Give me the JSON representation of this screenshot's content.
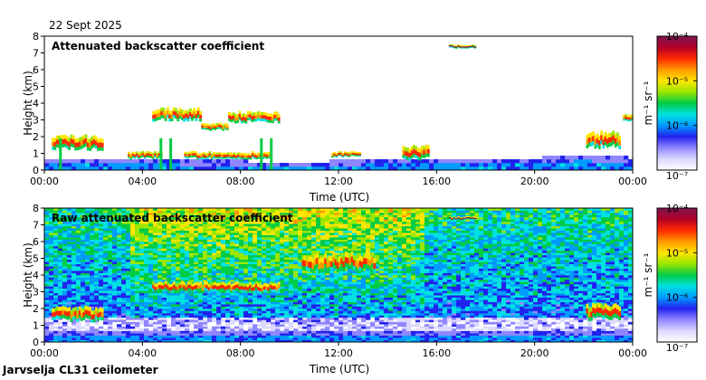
{
  "date": "22 Sept 2025",
  "footer": "Jarvselja CL31 ceilometer",
  "colors": {
    "ramp": [
      "#ffffff",
      "#dcd8ff",
      "#8f86ff",
      "#2222ee",
      "#009bff",
      "#00e1e1",
      "#00cc44",
      "#9ae600",
      "#ffe600",
      "#ff9900",
      "#ff2a00",
      "#b40028",
      "#7a1550"
    ],
    "background": "#ffffff"
  },
  "chart_data": [
    {
      "type": "heatmap",
      "title": "Attenuated backscatter coefficient",
      "xlabel": "Time (UTC)",
      "ylabel": "Height (km)",
      "xticks": [
        "00:00",
        "04:00",
        "08:00",
        "12:00",
        "16:00",
        "20:00",
        "00:00"
      ],
      "xlim_hours": [
        0,
        24
      ],
      "ylim_km": [
        0,
        8
      ],
      "yticks": [
        "0",
        "1",
        "2",
        "3",
        "4",
        "5",
        "6",
        "7",
        "8"
      ],
      "colorbar": {
        "label": "m⁻¹ sr⁻¹",
        "scale": "log",
        "range": [
          1e-07,
          0.0001
        ],
        "ticks": [
          "10⁻⁷",
          "10⁻⁶",
          "10⁻⁵",
          "10⁻⁴"
        ]
      },
      "boundary_layer_km": [
        [
          0,
          0.45
        ],
        [
          2,
          0.4
        ],
        [
          4,
          0.4
        ],
        [
          6,
          0.3
        ],
        [
          8,
          0.3
        ],
        [
          10,
          0.25
        ],
        [
          12,
          0.3
        ],
        [
          14,
          0.35
        ],
        [
          16,
          0.5
        ],
        [
          18,
          0.45
        ],
        [
          20,
          0.5
        ],
        [
          22,
          0.55
        ],
        [
          24,
          0.5
        ]
      ],
      "cloud_layers": [
        {
          "start_h": 0.3,
          "end_h": 2.4,
          "base_km": 1.3,
          "top_km": 2.1,
          "peak": "red"
        },
        {
          "start_h": 3.4,
          "end_h": 4.8,
          "base_km": 0.7,
          "top_km": 1.1,
          "peak": "red"
        },
        {
          "start_h": 4.4,
          "end_h": 6.4,
          "base_km": 3.0,
          "top_km": 3.7,
          "peak": "red"
        },
        {
          "start_h": 6.4,
          "end_h": 7.5,
          "base_km": 2.4,
          "top_km": 2.8,
          "peak": "red"
        },
        {
          "start_h": 7.5,
          "end_h": 9.6,
          "base_km": 2.9,
          "top_km": 3.5,
          "peak": "red"
        },
        {
          "start_h": 5.7,
          "end_h": 9.2,
          "base_km": 0.7,
          "top_km": 1.1,
          "peak": "red"
        },
        {
          "start_h": 11.7,
          "end_h": 12.9,
          "base_km": 0.8,
          "top_km": 1.1,
          "peak": "red"
        },
        {
          "start_h": 14.6,
          "end_h": 15.7,
          "base_km": 0.7,
          "top_km": 1.5,
          "peak": "red"
        },
        {
          "start_h": 16.5,
          "end_h": 17.6,
          "base_km": 7.3,
          "top_km": 7.5,
          "peak": "maroon"
        },
        {
          "start_h": 22.1,
          "end_h": 23.5,
          "base_km": 1.4,
          "top_km": 2.3,
          "peak": "red"
        },
        {
          "start_h": 23.6,
          "end_h": 24.0,
          "base_km": 2.9,
          "top_km": 3.3,
          "peak": "red"
        }
      ],
      "precipitation_streaks_h": [
        0.6,
        4.7,
        5.1,
        8.8,
        9.2
      ]
    },
    {
      "type": "heatmap",
      "title": "Raw attenuated backscatter coefficient",
      "xlabel": "Time (UTC)",
      "ylabel": "Height (km)",
      "xticks": [
        "00:00",
        "04:00",
        "08:00",
        "12:00",
        "16:00",
        "20:00",
        "00:00"
      ],
      "xlim_hours": [
        0,
        24
      ],
      "ylim_km": [
        0,
        8
      ],
      "yticks": [
        "0",
        "1",
        "2",
        "3",
        "4",
        "5",
        "6",
        "7",
        "8"
      ],
      "colorbar": {
        "label": "m⁻¹ sr⁻¹",
        "scale": "log",
        "range": [
          1e-07,
          0.0001
        ],
        "ticks": [
          "10⁻⁷",
          "10⁻⁶",
          "10⁻⁵",
          "10⁻⁴"
        ]
      },
      "noise_floor_note": "noise dominated above the boundary layer, strongest between 04:00 and 15:00",
      "cloud_layers": [
        {
          "start_h": 0.3,
          "end_h": 2.4,
          "base_km": 1.3,
          "top_km": 2.1,
          "peak": "red"
        },
        {
          "start_h": 4.4,
          "end_h": 9.6,
          "base_km": 3.0,
          "top_km": 3.6,
          "peak": "red"
        },
        {
          "start_h": 10.5,
          "end_h": 13.5,
          "base_km": 4.3,
          "top_km": 5.3,
          "peak": "red"
        },
        {
          "start_h": 16.5,
          "end_h": 17.6,
          "base_km": 7.3,
          "top_km": 7.5,
          "peak": "maroon"
        },
        {
          "start_h": 22.1,
          "end_h": 23.5,
          "base_km": 1.4,
          "top_km": 2.3,
          "peak": "red"
        }
      ]
    }
  ]
}
